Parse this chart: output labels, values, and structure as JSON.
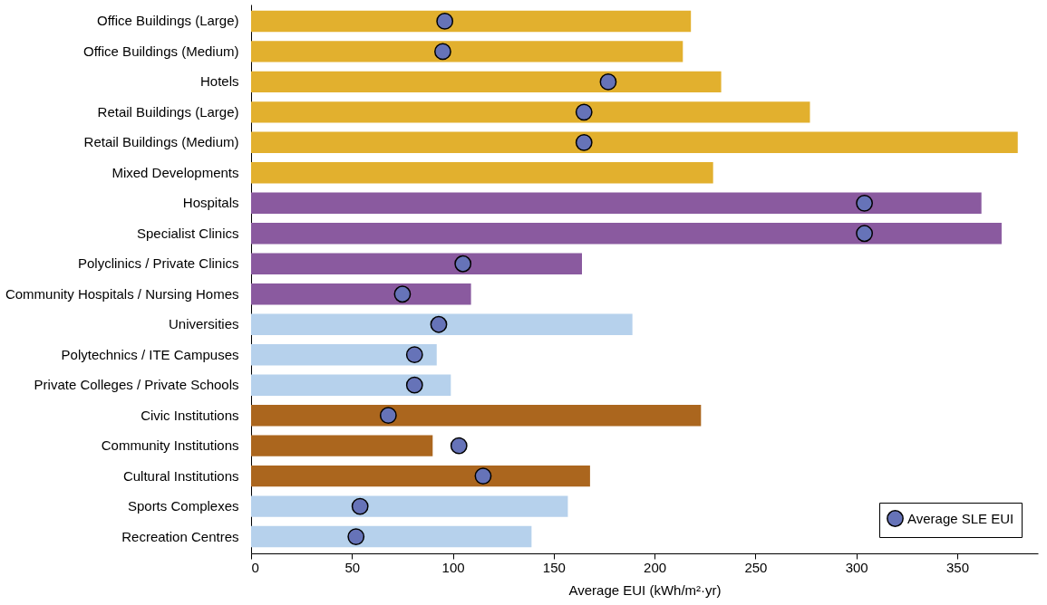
{
  "chart_data": {
    "type": "bar",
    "orientation": "horizontal",
    "xlabel": "Average EUI (kWh/m²·yr)",
    "categories": [
      "Office Buildings (Large)",
      "Office Buildings (Medium)",
      "Hotels",
      "Retail Buildings (Large)",
      "Retail Buildings (Medium)",
      "Mixed Developments",
      "Hospitals",
      "Specialist Clinics",
      "Polyclinics / Private Clinics",
      "Community Hospitals / Nursing Homes",
      "Universities",
      "Polytechnics / ITE Campuses",
      "Private Colleges / Private Schools",
      "Civic Institutions",
      "Community Institutions",
      "Cultural Institutions",
      "Sports Complexes",
      "Recreation Centres"
    ],
    "series": [
      {
        "colors": [
          "#e2b02e",
          "#e2b02e",
          "#e2b02e",
          "#e2b02e",
          "#e2b02e",
          "#e2b02e",
          "#8a5a9f",
          "#8a5a9f",
          "#8a5a9f",
          "#8a5a9f",
          "#b6d1ec",
          "#b6d1ec",
          "#b6d1ec",
          "#ab661e",
          "#ab661e",
          "#ab661e",
          "#b6d1ec",
          "#b6d1ec"
        ],
        "values": [
          218,
          214,
          233,
          277,
          380,
          229,
          362,
          372,
          164,
          109,
          189,
          92,
          99,
          223,
          90,
          168,
          157,
          139
        ]
      },
      {
        "type": "scatter",
        "name": "Average SLE EUI",
        "color": "#6673b8",
        "values": [
          96,
          95,
          177,
          165,
          165,
          null,
          304,
          304,
          105,
          75,
          93,
          81,
          81,
          68,
          103,
          115,
          54,
          52
        ]
      }
    ],
    "xlim": [
      0,
      390
    ],
    "xticks": [
      0,
      50,
      100,
      150,
      200,
      250,
      300,
      350
    ],
    "grid": false,
    "legend": "bottom right",
    "marker": "circle"
  }
}
